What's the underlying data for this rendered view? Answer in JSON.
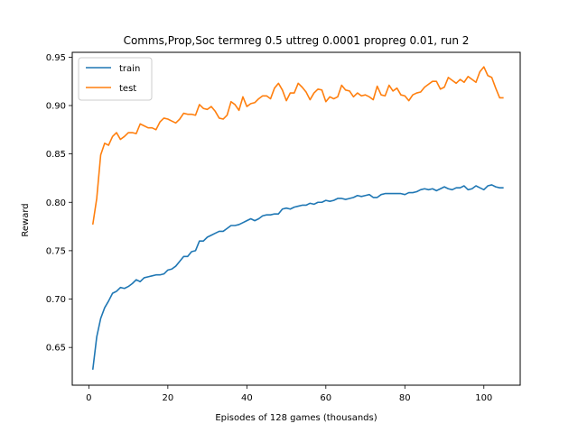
{
  "chart_data": {
    "type": "line",
    "title": "Comms,Prop,Soc termreg 0.5 uttreg 0.0001 propreg 0.01, run 2",
    "xlabel": "Episodes of 128 games (thousands)",
    "ylabel": "Reward",
    "xlim": [
      -4.2,
      109.2
    ],
    "ylim": [
      0.611,
      0.955
    ],
    "xticks": [
      0,
      20,
      40,
      60,
      80,
      100
    ],
    "yticks": [
      0.65,
      0.7,
      0.75,
      0.8,
      0.85,
      0.9,
      0.95
    ],
    "xtick_labels": [
      "0",
      "20",
      "40",
      "60",
      "80",
      "100"
    ],
    "ytick_labels": [
      "0.65",
      "0.70",
      "0.75",
      "0.80",
      "0.85",
      "0.90",
      "0.95"
    ],
    "grid": false,
    "legend_position": "top-left",
    "x": [
      1,
      2,
      3,
      4,
      5,
      6,
      7,
      8,
      9,
      10,
      11,
      12,
      13,
      14,
      15,
      16,
      17,
      18,
      19,
      20,
      21,
      22,
      23,
      24,
      25,
      26,
      27,
      28,
      29,
      30,
      31,
      32,
      33,
      34,
      35,
      36,
      37,
      38,
      39,
      40,
      41,
      42,
      43,
      44,
      45,
      46,
      47,
      48,
      49,
      50,
      51,
      52,
      53,
      54,
      55,
      56,
      57,
      58,
      59,
      60,
      61,
      62,
      63,
      64,
      65,
      66,
      67,
      68,
      69,
      70,
      71,
      72,
      73,
      74,
      75,
      76,
      77,
      78,
      79,
      80,
      81,
      82,
      83,
      84,
      85,
      86,
      87,
      88,
      89,
      90,
      91,
      92,
      93,
      94,
      95,
      96,
      97,
      98,
      99,
      100,
      101,
      102,
      103,
      104,
      105
    ],
    "series": [
      {
        "name": "train",
        "color": "#1f77b4",
        "values": [
          0.627,
          0.661,
          0.68,
          0.691,
          0.698,
          0.706,
          0.708,
          0.712,
          0.711,
          0.713,
          0.716,
          0.72,
          0.718,
          0.722,
          0.723,
          0.724,
          0.725,
          0.725,
          0.726,
          0.73,
          0.731,
          0.734,
          0.739,
          0.744,
          0.744,
          0.749,
          0.75,
          0.76,
          0.76,
          0.764,
          0.766,
          0.768,
          0.77,
          0.77,
          0.773,
          0.776,
          0.776,
          0.777,
          0.779,
          0.781,
          0.783,
          0.781,
          0.783,
          0.786,
          0.787,
          0.787,
          0.788,
          0.788,
          0.793,
          0.794,
          0.793,
          0.795,
          0.796,
          0.797,
          0.797,
          0.799,
          0.798,
          0.8,
          0.8,
          0.802,
          0.801,
          0.802,
          0.804,
          0.804,
          0.803,
          0.804,
          0.805,
          0.807,
          0.806,
          0.807,
          0.808,
          0.805,
          0.805,
          0.808,
          0.809,
          0.809,
          0.809,
          0.809,
          0.809,
          0.808,
          0.81,
          0.81,
          0.811,
          0.813,
          0.814,
          0.813,
          0.814,
          0.812,
          0.814,
          0.816,
          0.814,
          0.813,
          0.815,
          0.815,
          0.817,
          0.813,
          0.814,
          0.817,
          0.815,
          0.813,
          0.817,
          0.818,
          0.816,
          0.815,
          0.815
        ]
      },
      {
        "name": "test",
        "color": "#ff7f0e",
        "values": [
          0.777,
          0.804,
          0.849,
          0.861,
          0.859,
          0.868,
          0.872,
          0.865,
          0.868,
          0.872,
          0.872,
          0.871,
          0.881,
          0.879,
          0.877,
          0.877,
          0.875,
          0.883,
          0.887,
          0.886,
          0.884,
          0.882,
          0.886,
          0.892,
          0.891,
          0.891,
          0.89,
          0.901,
          0.897,
          0.896,
          0.899,
          0.894,
          0.887,
          0.886,
          0.89,
          0.904,
          0.901,
          0.895,
          0.909,
          0.899,
          0.902,
          0.903,
          0.907,
          0.91,
          0.91,
          0.907,
          0.918,
          0.923,
          0.916,
          0.905,
          0.913,
          0.913,
          0.923,
          0.919,
          0.914,
          0.906,
          0.913,
          0.917,
          0.916,
          0.904,
          0.909,
          0.907,
          0.909,
          0.921,
          0.916,
          0.915,
          0.909,
          0.913,
          0.91,
          0.911,
          0.909,
          0.906,
          0.92,
          0.911,
          0.91,
          0.921,
          0.915,
          0.918,
          0.911,
          0.91,
          0.905,
          0.911,
          0.913,
          0.914,
          0.919,
          0.922,
          0.925,
          0.925,
          0.917,
          0.919,
          0.929,
          0.926,
          0.923,
          0.927,
          0.924,
          0.93,
          0.927,
          0.924,
          0.935,
          0.94,
          0.931,
          0.929,
          0.918,
          0.908,
          0.908
        ]
      }
    ]
  }
}
